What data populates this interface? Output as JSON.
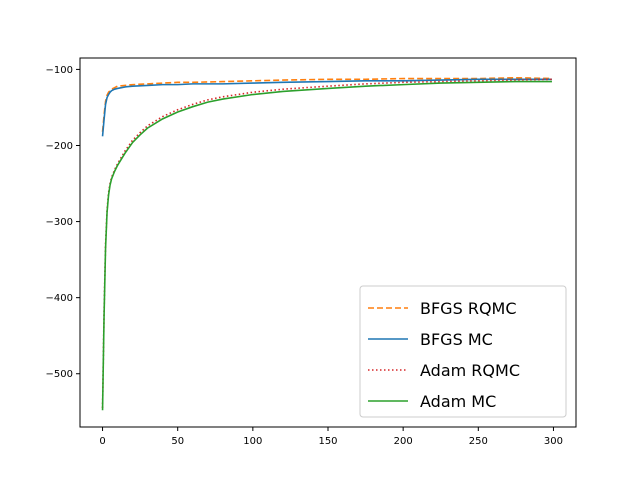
{
  "chart_data": {
    "type": "line",
    "title": "",
    "xlabel": "",
    "ylabel": "",
    "xlim": [
      -15,
      315
    ],
    "ylim": [
      -570,
      -85
    ],
    "xticks": [
      0,
      50,
      100,
      150,
      200,
      250,
      300
    ],
    "yticks": [
      -500,
      -400,
      -300,
      -200,
      -100
    ],
    "xtick_labels": [
      "0",
      "50",
      "100",
      "150",
      "200",
      "250",
      "300"
    ],
    "ytick_labels": [
      "−500",
      "−400",
      "−300",
      "−200",
      "−100"
    ],
    "grid": false,
    "legend_position": "lower-right",
    "series": [
      {
        "name": "BFGS RQMC",
        "color": "#ff7f0e",
        "style": "dashed",
        "x": [
          0,
          1,
          2,
          3,
          4,
          5,
          6,
          8,
          10,
          15,
          20,
          30,
          40,
          50,
          60,
          80,
          100,
          120,
          150,
          175,
          200,
          225,
          250,
          275,
          299
        ],
        "y": [
          -182,
          -160,
          -142,
          -134,
          -130,
          -128,
          -126,
          -124,
          -122,
          -121,
          -120,
          -119,
          -118,
          -117,
          -117,
          -116,
          -115,
          -114,
          -113,
          -113,
          -112,
          -112,
          -112,
          -111,
          -112
        ]
      },
      {
        "name": "BFGS MC",
        "color": "#1f77b4",
        "style": "solid",
        "x": [
          0,
          1,
          2,
          3,
          4,
          5,
          6,
          8,
          10,
          15,
          20,
          30,
          40,
          50,
          60,
          80,
          100,
          120,
          150,
          175,
          200,
          225,
          250,
          275,
          299
        ],
        "y": [
          -188,
          -166,
          -146,
          -137,
          -133,
          -130,
          -128,
          -126,
          -125,
          -123,
          -122,
          -121,
          -120,
          -120,
          -119,
          -119,
          -118,
          -117,
          -116,
          -115,
          -115,
          -114,
          -113,
          -113,
          -113
        ]
      },
      {
        "name": "Adam RQMC",
        "color": "#d62728",
        "style": "dotted",
        "x": [
          0,
          1,
          2,
          3,
          4,
          5,
          6,
          8,
          10,
          15,
          20,
          25,
          30,
          40,
          50,
          60,
          70,
          80,
          100,
          120,
          150,
          175,
          200,
          225,
          250,
          275,
          299
        ],
        "y": [
          -545,
          -420,
          -330,
          -285,
          -262,
          -250,
          -242,
          -232,
          -224,
          -207,
          -193,
          -183,
          -174,
          -162,
          -153,
          -146,
          -140,
          -136,
          -130,
          -126,
          -122,
          -119,
          -117,
          -116,
          -115,
          -114,
          -113
        ]
      },
      {
        "name": "Adam MC",
        "color": "#2ca02c",
        "style": "solid",
        "x": [
          0,
          1,
          2,
          3,
          4,
          5,
          6,
          8,
          10,
          15,
          20,
          25,
          30,
          40,
          50,
          60,
          70,
          80,
          100,
          120,
          150,
          175,
          200,
          225,
          250,
          275,
          299
        ],
        "y": [
          -548,
          -425,
          -335,
          -288,
          -265,
          -252,
          -244,
          -234,
          -226,
          -210,
          -196,
          -186,
          -177,
          -165,
          -156,
          -149,
          -143,
          -139,
          -133,
          -129,
          -125,
          -122,
          -120,
          -118,
          -117,
          -116,
          -116
        ]
      }
    ]
  }
}
